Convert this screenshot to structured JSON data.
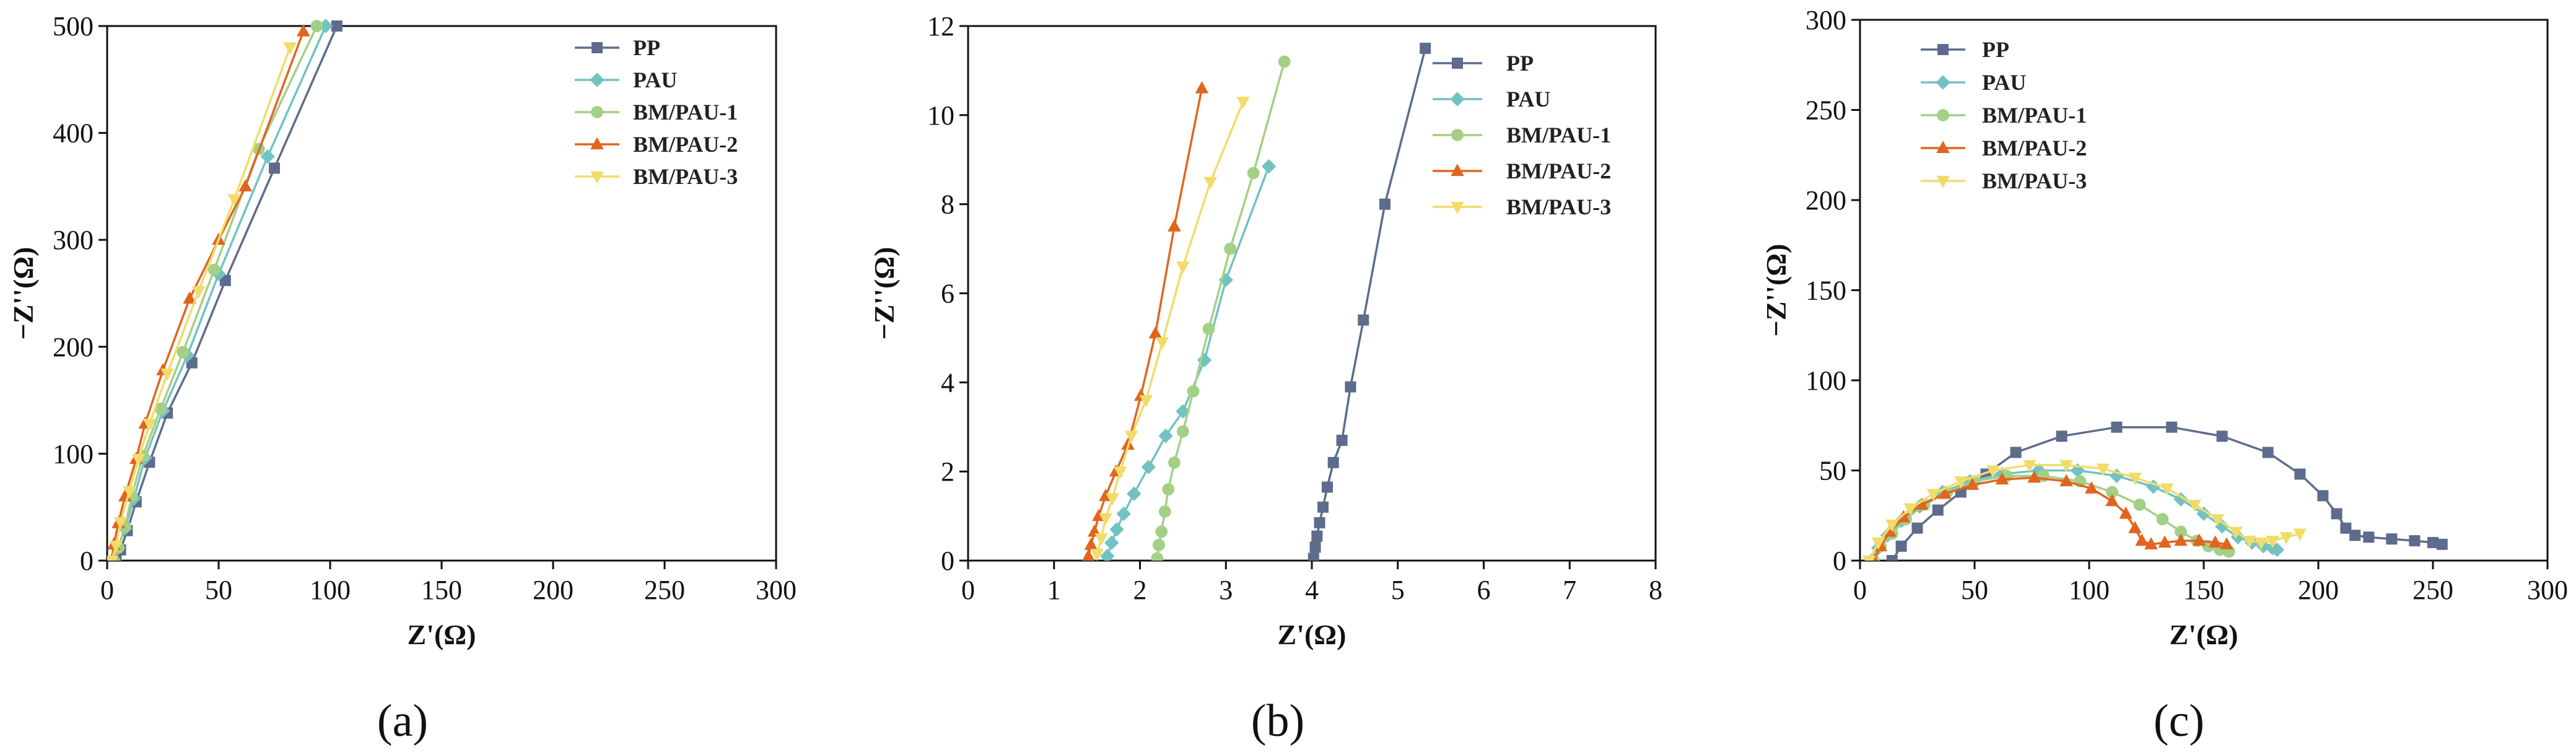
{
  "figure": {
    "panel_labels": [
      "(a)",
      "(b)",
      "(c)"
    ]
  },
  "series_styles": [
    {
      "name": "PP",
      "color": "#5d6b8c",
      "marker": "square"
    },
    {
      "name": "PAU",
      "color": "#73c2c2",
      "marker": "diamond"
    },
    {
      "name": "BM/PAU-1",
      "color": "#a4cf86",
      "marker": "circle"
    },
    {
      "name": "BM/PAU-2",
      "color": "#e0661f",
      "marker": "triangle-up"
    },
    {
      "name": "BM/PAU-3",
      "color": "#f1dc6a",
      "marker": "triangle-down"
    }
  ],
  "chart_data": [
    {
      "type": "line",
      "panel": "(a)",
      "xlabel": "Z'(Ω)",
      "ylabel": "−Z''(Ω)",
      "xlim": [
        0,
        300
      ],
      "ylim": [
        0,
        500
      ],
      "xticks": [
        0,
        50,
        100,
        150,
        200,
        250,
        300
      ],
      "yticks": [
        0,
        100,
        200,
        300,
        400,
        500
      ],
      "legend": "top-right",
      "series": [
        {
          "name": "PP",
          "x": [
            4,
            6,
            9,
            13,
            19,
            27,
            38,
            53,
            75,
            103
          ],
          "y": [
            0,
            10,
            28,
            55,
            92,
            138,
            185,
            262,
            367,
            500
          ]
        },
        {
          "name": "PAU",
          "x": [
            3,
            5,
            8,
            12,
            17,
            25,
            36,
            50,
            72,
            98
          ],
          "y": [
            0,
            12,
            30,
            58,
            96,
            140,
            192,
            268,
            378,
            500
          ]
        },
        {
          "name": "BM/PAU-1",
          "x": [
            3,
            5,
            8,
            11,
            16,
            24,
            34,
            48,
            68,
            94
          ],
          "y": [
            0,
            12,
            32,
            60,
            98,
            142,
            195,
            272,
            385,
            500
          ]
        },
        {
          "name": "BM/PAU-2",
          "x": [
            2,
            3,
            5,
            8,
            13,
            17,
            25,
            37,
            50,
            62,
            88
          ],
          "y": [
            0,
            15,
            35,
            60,
            95,
            128,
            178,
            245,
            300,
            350,
            495
          ]
        },
        {
          "name": "BM/PAU-3",
          "x": [
            2,
            4,
            6,
            10,
            14,
            19,
            27,
            41,
            57,
            82
          ],
          "y": [
            0,
            14,
            36,
            65,
            95,
            128,
            175,
            252,
            338,
            480
          ]
        }
      ]
    },
    {
      "type": "line",
      "panel": "(b)",
      "xlabel": "Z'(Ω)",
      "ylabel": "−Z''(Ω)",
      "xlim": [
        0,
        8
      ],
      "ylim": [
        0,
        12
      ],
      "xticks": [
        0,
        1,
        2,
        3,
        4,
        5,
        6,
        7,
        8
      ],
      "yticks": [
        0,
        2,
        4,
        6,
        8,
        10,
        12
      ],
      "legend": "top-right",
      "series": [
        {
          "name": "PP",
          "x": [
            4.02,
            4.04,
            4.06,
            4.09,
            4.13,
            4.18,
            4.25,
            4.35,
            4.45,
            4.6,
            4.85,
            5.32
          ],
          "y": [
            0.05,
            0.3,
            0.55,
            0.85,
            1.2,
            1.65,
            2.2,
            2.7,
            3.9,
            5.4,
            8.0,
            11.5
          ]
        },
        {
          "name": "PAU",
          "x": [
            1.62,
            1.67,
            1.73,
            1.81,
            1.93,
            2.1,
            2.3,
            2.5,
            2.75,
            3.0,
            3.5
          ],
          "y": [
            0.1,
            0.4,
            0.7,
            1.05,
            1.5,
            2.1,
            2.8,
            3.35,
            4.5,
            6.3,
            8.85
          ]
        },
        {
          "name": "BM/PAU-1",
          "x": [
            2.2,
            2.22,
            2.25,
            2.29,
            2.33,
            2.4,
            2.5,
            2.62,
            2.8,
            3.05,
            3.32,
            3.68
          ],
          "y": [
            0.05,
            0.35,
            0.65,
            1.1,
            1.6,
            2.2,
            2.9,
            3.8,
            5.2,
            7.0,
            8.7,
            11.2
          ]
        },
        {
          "name": "BM/PAU-2",
          "x": [
            1.4,
            1.43,
            1.47,
            1.52,
            1.6,
            1.72,
            1.86,
            2.01,
            2.18,
            2.4,
            2.72
          ],
          "y": [
            0.1,
            0.35,
            0.65,
            1.0,
            1.45,
            2.0,
            2.6,
            3.7,
            5.1,
            7.5,
            10.6
          ]
        },
        {
          "name": "BM/PAU-3",
          "x": [
            1.5,
            1.55,
            1.6,
            1.68,
            1.77,
            1.9,
            2.07,
            2.26,
            2.5,
            2.82,
            3.2
          ],
          "y": [
            0.15,
            0.5,
            0.95,
            1.4,
            2.0,
            2.8,
            3.6,
            4.9,
            6.6,
            8.5,
            10.3
          ]
        }
      ]
    },
    {
      "type": "line",
      "panel": "(c)",
      "xlabel": "Z'(Ω)",
      "ylabel": "−Z''(Ω)",
      "xlim": [
        0,
        300
      ],
      "ylim": [
        0,
        300
      ],
      "xticks": [
        0,
        50,
        100,
        150,
        200,
        250,
        300
      ],
      "yticks": [
        0,
        50,
        100,
        150,
        200,
        250,
        300
      ],
      "legend": "top-left",
      "series": [
        {
          "name": "PP",
          "x": [
            14,
            18,
            25,
            34,
            44,
            55,
            68,
            88,
            112,
            136,
            158,
            178,
            192,
            202,
            208,
            212,
            216,
            222,
            232,
            242,
            250,
            254
          ],
          "y": [
            0,
            8,
            18,
            28,
            38,
            48,
            60,
            69,
            74,
            74,
            69,
            60,
            48,
            36,
            26,
            18,
            14,
            13,
            12,
            11,
            10,
            9
          ]
        },
        {
          "name": "PAU",
          "x": [
            5,
            8,
            12,
            18,
            26,
            36,
            48,
            62,
            78,
            95,
            112,
            128,
            140,
            150,
            158,
            165,
            171,
            176,
            180,
            182
          ],
          "y": [
            0,
            7,
            14,
            22,
            30,
            38,
            44,
            48,
            50,
            50,
            47,
            41,
            34,
            26,
            19,
            13,
            10,
            8,
            7,
            6
          ]
        },
        {
          "name": "BM/PAU-1",
          "x": [
            6,
            9,
            14,
            20,
            28,
            38,
            50,
            64,
            80,
            96,
            110,
            122,
            132,
            140,
            147,
            152,
            157,
            161
          ],
          "y": [
            0,
            8,
            15,
            23,
            31,
            38,
            44,
            47,
            47,
            44,
            38,
            31,
            23,
            16,
            11,
            8,
            6,
            5
          ]
        },
        {
          "name": "BM/PAU-2",
          "x": [
            6,
            9,
            13,
            19,
            27,
            37,
            49,
            62,
            76,
            90,
            101,
            110,
            116,
            120,
            123,
            127,
            133,
            140,
            148,
            155,
            160
          ],
          "y": [
            0,
            8,
            16,
            24,
            31,
            37,
            42,
            45,
            46,
            44,
            40,
            33,
            26,
            18,
            11,
            9,
            10,
            11,
            11,
            10,
            9
          ]
        },
        {
          "name": "BM/PAU-3",
          "x": [
            4,
            8,
            14,
            22,
            32,
            44,
            58,
            74,
            90,
            106,
            120,
            134,
            146,
            156,
            164,
            170,
            175,
            180,
            186,
            192
          ],
          "y": [
            0,
            10,
            20,
            29,
            37,
            44,
            50,
            53,
            53,
            51,
            46,
            40,
            31,
            23,
            16,
            11,
            10,
            11,
            13,
            15
          ]
        }
      ]
    }
  ]
}
